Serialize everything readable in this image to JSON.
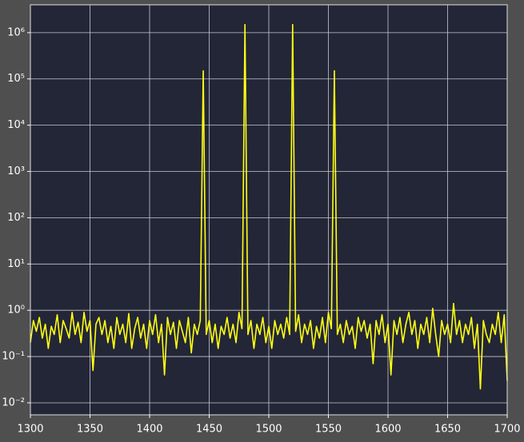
{
  "chart_data": {
    "type": "line",
    "yscale": "log",
    "grid": true,
    "color": "#ffff14",
    "x": [
      1300,
      1302.5,
      1305,
      1307.5,
      1310,
      1312.5,
      1315,
      1317.5,
      1320,
      1322.5,
      1325,
      1327.5,
      1330,
      1332.5,
      1335,
      1337.5,
      1340,
      1342.5,
      1345,
      1347.5,
      1350,
      1352.5,
      1355,
      1357.5,
      1360,
      1362.5,
      1365,
      1367.5,
      1370,
      1372.5,
      1375,
      1377.5,
      1380,
      1382.5,
      1385,
      1387.5,
      1390,
      1392.5,
      1395,
      1397.5,
      1400,
      1402.5,
      1405,
      1407.5,
      1410,
      1412.5,
      1415,
      1417.5,
      1420,
      1422.5,
      1425,
      1427.5,
      1430,
      1432.5,
      1435,
      1437.5,
      1440,
      1442.5,
      1445,
      1447.5,
      1450,
      1452.5,
      1455,
      1457.5,
      1460,
      1462.5,
      1465,
      1467.5,
      1470,
      1472.5,
      1475,
      1477.5,
      1480,
      1482.5,
      1485,
      1487.5,
      1490,
      1492.5,
      1495,
      1497.5,
      1500,
      1502.5,
      1505,
      1507.5,
      1510,
      1512.5,
      1515,
      1517.5,
      1520,
      1522.5,
      1525,
      1527.5,
      1530,
      1532.5,
      1535,
      1537.5,
      1540,
      1542.5,
      1545,
      1547.5,
      1550,
      1552.5,
      1555,
      1557.5,
      1560,
      1562.5,
      1565,
      1567.5,
      1570,
      1572.5,
      1575,
      1577.5,
      1580,
      1582.5,
      1585,
      1587.5,
      1590,
      1592.5,
      1595,
      1597.5,
      1600,
      1602.5,
      1605,
      1607.5,
      1610,
      1612.5,
      1615,
      1617.5,
      1620,
      1622.5,
      1625,
      1627.5,
      1630,
      1632.5,
      1635,
      1637.5,
      1640,
      1642.5,
      1645,
      1647.5,
      1650,
      1652.5,
      1655,
      1657.5,
      1660,
      1662.5,
      1665,
      1667.5,
      1670,
      1672.5,
      1675,
      1677.5,
      1680,
      1682.5,
      1685,
      1687.5,
      1690,
      1692.5,
      1695,
      1697.5,
      1700
    ],
    "values": [
      0.2,
      0.6,
      0.35,
      0.7,
      0.25,
      0.5,
      0.15,
      0.45,
      0.3,
      0.8,
      0.2,
      0.6,
      0.4,
      0.25,
      0.9,
      0.3,
      0.55,
      0.2,
      0.9,
      0.35,
      0.6,
      0.05,
      0.5,
      0.7,
      0.3,
      0.6,
      0.2,
      0.45,
      0.15,
      0.7,
      0.3,
      0.5,
      0.2,
      0.85,
      0.15,
      0.4,
      0.7,
      0.25,
      0.5,
      0.15,
      0.6,
      0.3,
      0.8,
      0.2,
      0.5,
      0.04,
      0.7,
      0.3,
      0.55,
      0.15,
      0.6,
      0.35,
      0.2,
      0.7,
      0.12,
      0.5,
      0.3,
      0.6,
      150000,
      0.3,
      0.6,
      0.2,
      0.5,
      0.15,
      0.45,
      0.3,
      0.7,
      0.25,
      0.5,
      0.2,
      0.9,
      0.4,
      1500000,
      0.3,
      0.6,
      0.15,
      0.5,
      0.3,
      0.7,
      0.2,
      0.45,
      0.15,
      0.6,
      0.3,
      0.5,
      0.25,
      0.7,
      0.3,
      1500000,
      0.35,
      0.8,
      0.2,
      0.5,
      0.3,
      0.6,
      0.15,
      0.45,
      0.25,
      0.7,
      0.2,
      0.9,
      0.4,
      150000,
      0.3,
      0.5,
      0.2,
      0.6,
      0.3,
      0.45,
      0.15,
      0.7,
      0.35,
      0.6,
      0.25,
      0.5,
      0.07,
      0.6,
      0.3,
      0.8,
      0.2,
      0.5,
      0.04,
      0.6,
      0.3,
      0.7,
      0.2,
      0.5,
      0.9,
      0.3,
      0.6,
      0.15,
      0.5,
      0.3,
      0.7,
      0.2,
      1.1,
      0.3,
      0.1,
      0.6,
      0.3,
      0.5,
      0.2,
      1.4,
      0.3,
      0.6,
      0.2,
      0.5,
      0.3,
      0.7,
      0.15,
      0.5,
      0.02,
      0.6,
      0.3,
      0.2,
      0.5,
      0.3,
      0.9,
      0.2,
      0.8,
      0.03
    ],
    "xlim": [
      1300,
      1700
    ],
    "xticks": [
      1300,
      1350,
      1400,
      1450,
      1500,
      1550,
      1600,
      1650,
      1700
    ],
    "ylim": [
      0.0055,
      4000000
    ],
    "yticks": [
      {
        "value": 0.01,
        "label": "10⁻²"
      },
      {
        "value": 0.1,
        "label": "10⁻¹"
      },
      {
        "value": 1,
        "label": "10⁰"
      },
      {
        "value": 10,
        "label": "10¹"
      },
      {
        "value": 100,
        "label": "10²"
      },
      {
        "value": 1000,
        "label": "10³"
      },
      {
        "value": 10000,
        "label": "10⁴"
      },
      {
        "value": 100000,
        "label": "10⁵"
      },
      {
        "value": 1000000,
        "label": "10⁶"
      }
    ]
  }
}
